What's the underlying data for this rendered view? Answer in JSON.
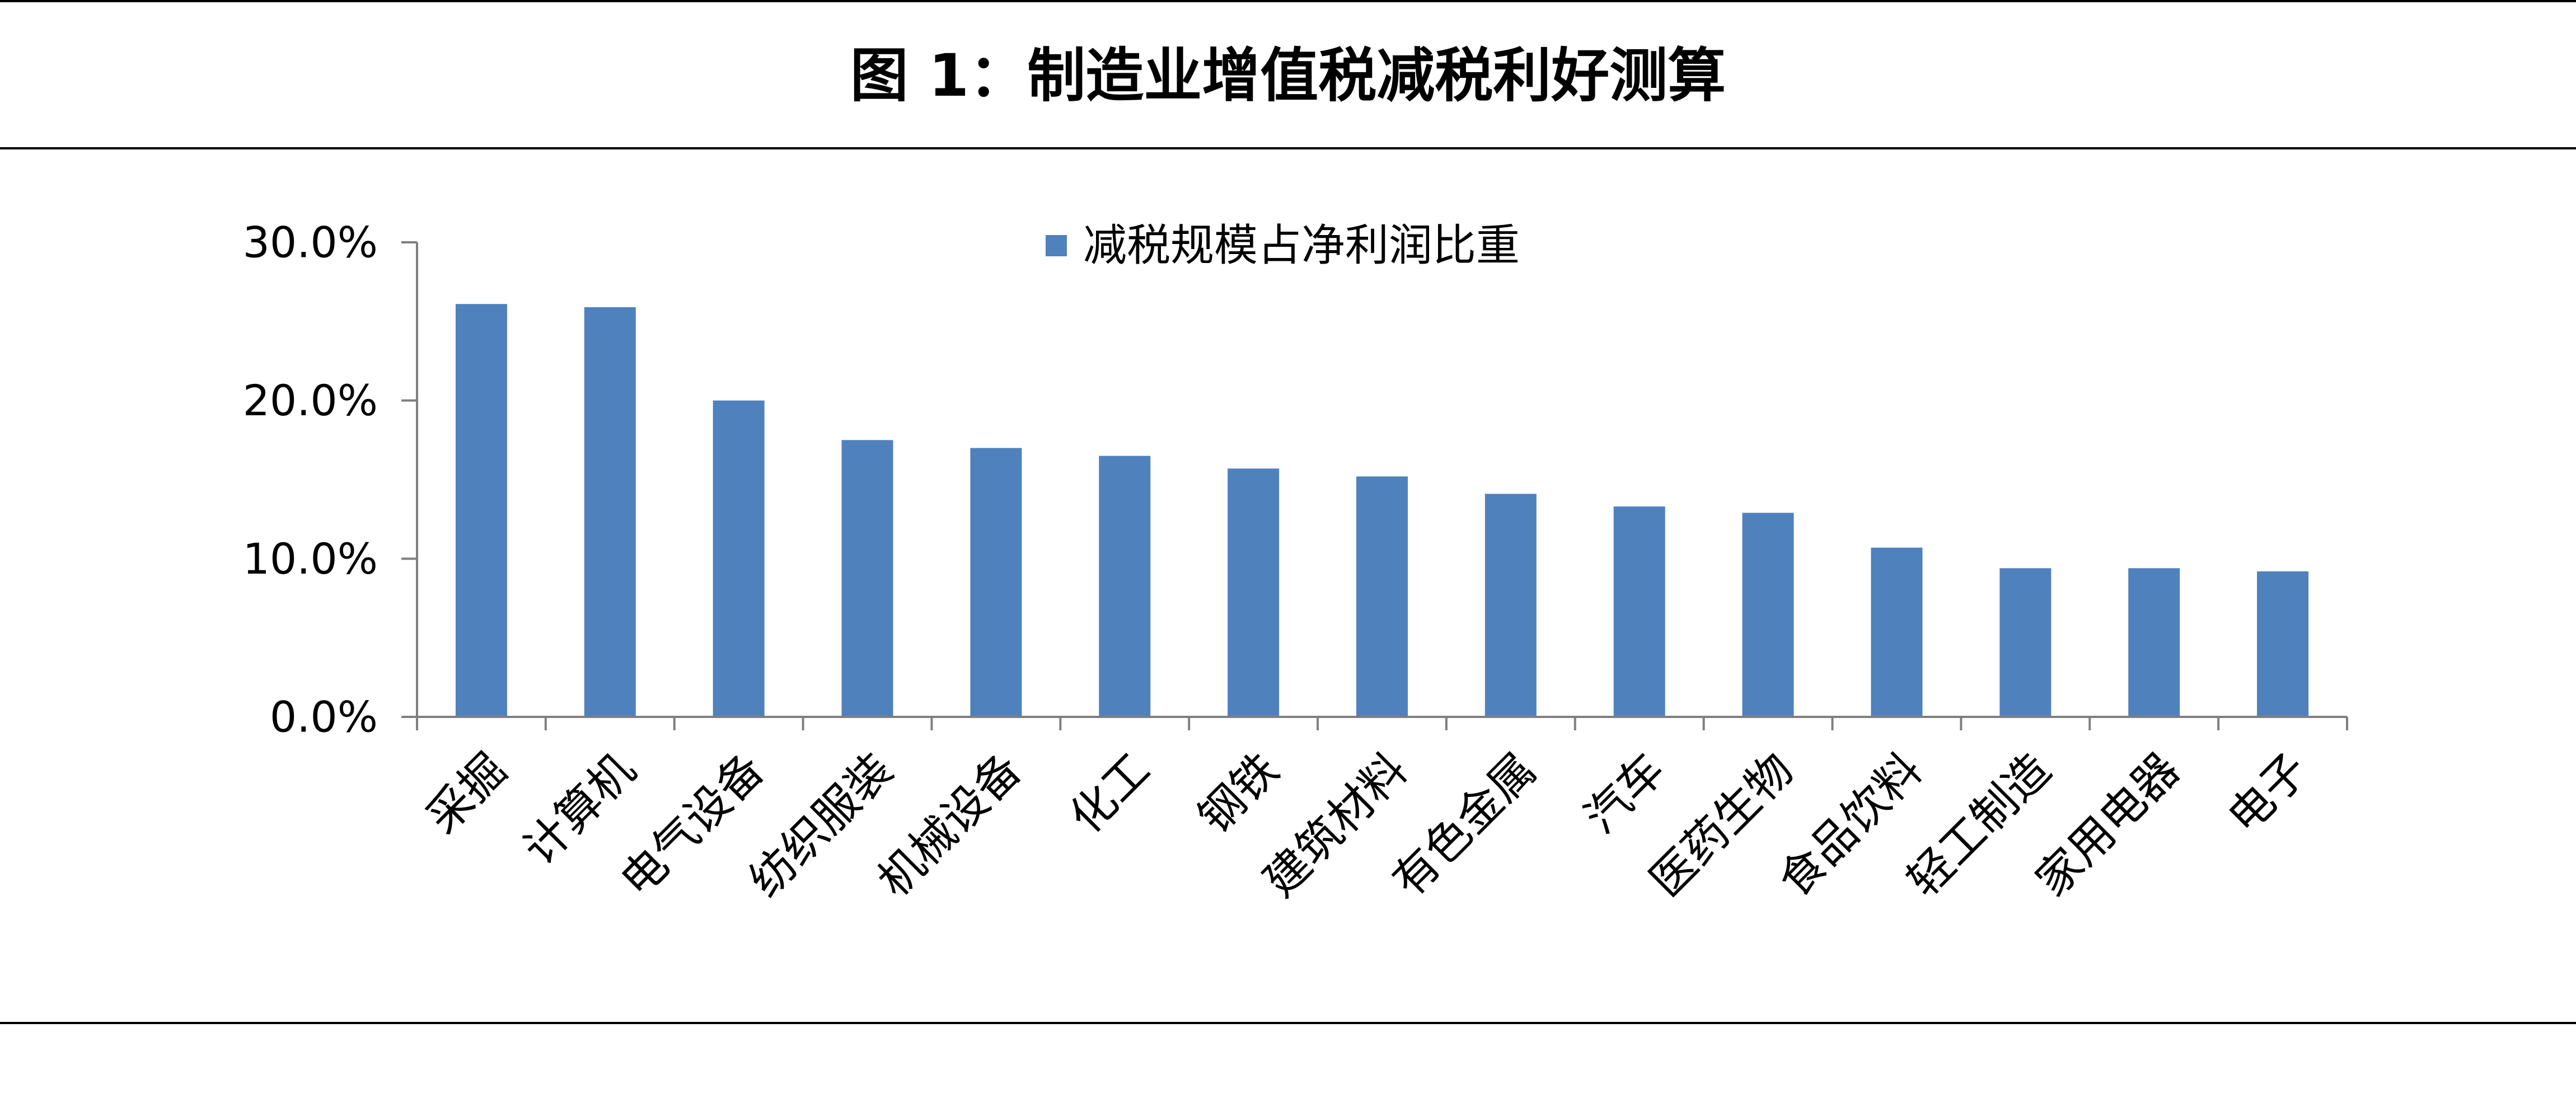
{
  "title": "图 1：制造业增值税减税利好测算",
  "chart_data": {
    "type": "bar",
    "categories": [
      "采掘",
      "计算机",
      "电气设备",
      "纺织服装",
      "机械设备",
      "化工",
      "钢铁",
      "建筑材料",
      "有色金属",
      "汽车",
      "医药生物",
      "食品饮料",
      "轻工制造",
      "家用电器",
      "电子"
    ],
    "series": [
      {
        "name": "减税规模占净利润比重",
        "values": [
          26.1,
          25.9,
          20.0,
          17.5,
          17.0,
          16.5,
          15.7,
          15.2,
          14.1,
          13.3,
          12.9,
          10.7,
          9.4,
          9.4,
          9.2
        ],
        "color": "#4F81BD"
      }
    ],
    "ylim": [
      0,
      30
    ],
    "yticks": [
      "0.0%",
      "10.0%",
      "20.0%",
      "30.0%"
    ],
    "ytick_values": [
      0,
      10,
      20,
      30
    ],
    "grid": false,
    "legend": "top-center",
    "xlabel": "",
    "ylabel": ""
  },
  "colors": {
    "bar": "#4F81BD",
    "axis": "#7f7f7f",
    "text": "#000000"
  }
}
